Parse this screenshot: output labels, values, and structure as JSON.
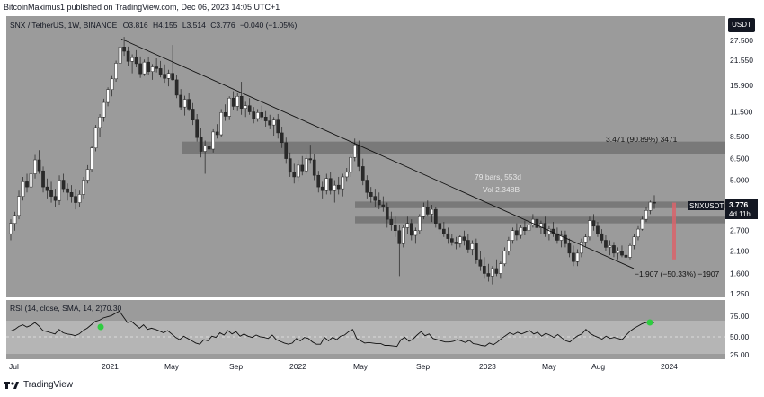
{
  "header": {
    "published_by": "BitcoinMaximus1 published on TradingView.com, Dec 06, 2023 14:05 UTC+1"
  },
  "symbol_line": {
    "symbol": "SNX / TetherUS, 1W, BINANCE",
    "o_label": "O",
    "o_value": "3.816",
    "h_label": "H",
    "h_value": "4.155",
    "l_label": "L",
    "l_value": "3.514",
    "c_label": "C",
    "c_value": "3.776",
    "change": "−0.040 (−1.05%)"
  },
  "currency_badge": "USDT",
  "price_tag": {
    "symbol": "SNXUSDT",
    "price": "3.776",
    "countdown": "4d 11h",
    "color": "#131722"
  },
  "annotations": {
    "measure_top": "3.471 (90.89%) 3471",
    "bars_info": "79 bars, 553d",
    "vol_info": "Vol 2.348B",
    "measure_bottom": "−1.907 (−50.33%) −1907"
  },
  "rsi": {
    "label": "RSI (14, close, SMA, 14, 2)",
    "value": "70.30",
    "ticks": [
      "75.00",
      "50.00",
      "25.00"
    ]
  },
  "footer": {
    "brand": "TradingView"
  },
  "colors": {
    "pane_bg": "#9b9b9b",
    "candle": "#ffffff",
    "zone": "#6e6e6e",
    "trendline": "#111111",
    "rsi_line": "#111111",
    "rsi_band": "#b5b5b5",
    "signal": "#2ecc40",
    "measure_bar": "#d9646b"
  },
  "chart_data": {
    "type": "candlestick",
    "title": "SNX / TetherUS, 1W, BINANCE",
    "y_scale": "log",
    "y_ticks": [
      "27.500",
      "21.550",
      "15.900",
      "11.500",
      "8.500",
      "6.500",
      "5.000",
      "3.776",
      "2.700",
      "2.100",
      "1.600",
      "1.250"
    ],
    "x_ticks": [
      "Jul",
      "2021",
      "May",
      "Sep",
      "2022",
      "May",
      "Sep",
      "2023",
      "May",
      "Aug",
      "2024"
    ],
    "candles": [
      {
        "o": 2.6,
        "h": 3.1,
        "l": 2.4,
        "c": 2.95
      },
      {
        "o": 2.95,
        "h": 3.4,
        "l": 2.7,
        "c": 3.25
      },
      {
        "o": 3.25,
        "h": 4.4,
        "l": 3.1,
        "c": 4.1
      },
      {
        "o": 4.1,
        "h": 5.2,
        "l": 3.9,
        "c": 4.9
      },
      {
        "o": 4.9,
        "h": 5.4,
        "l": 4.3,
        "c": 4.6
      },
      {
        "o": 4.6,
        "h": 5.6,
        "l": 4.4,
        "c": 5.4
      },
      {
        "o": 5.4,
        "h": 6.8,
        "l": 5.1,
        "c": 6.4
      },
      {
        "o": 6.4,
        "h": 7.2,
        "l": 5.4,
        "c": 5.6
      },
      {
        "o": 5.6,
        "h": 5.9,
        "l": 4.3,
        "c": 4.6
      },
      {
        "o": 4.6,
        "h": 5.1,
        "l": 4.0,
        "c": 4.4
      },
      {
        "o": 4.4,
        "h": 4.9,
        "l": 3.8,
        "c": 4.1
      },
      {
        "o": 4.1,
        "h": 4.5,
        "l": 3.6,
        "c": 3.9
      },
      {
        "o": 3.9,
        "h": 5.3,
        "l": 3.7,
        "c": 5.0
      },
      {
        "o": 5.0,
        "h": 5.4,
        "l": 4.3,
        "c": 4.5
      },
      {
        "o": 4.5,
        "h": 4.8,
        "l": 3.9,
        "c": 4.3
      },
      {
        "o": 4.3,
        "h": 4.7,
        "l": 3.8,
        "c": 4.1
      },
      {
        "o": 4.1,
        "h": 4.5,
        "l": 3.5,
        "c": 3.8
      },
      {
        "o": 3.8,
        "h": 4.4,
        "l": 3.6,
        "c": 4.2
      },
      {
        "o": 4.2,
        "h": 5.2,
        "l": 4.0,
        "c": 5.0
      },
      {
        "o": 5.0,
        "h": 6.0,
        "l": 4.8,
        "c": 5.7
      },
      {
        "o": 5.7,
        "h": 7.6,
        "l": 5.5,
        "c": 7.4
      },
      {
        "o": 7.4,
        "h": 9.8,
        "l": 7.1,
        "c": 9.5
      },
      {
        "o": 9.5,
        "h": 11.2,
        "l": 8.5,
        "c": 10.8
      },
      {
        "o": 10.8,
        "h": 13.5,
        "l": 10.2,
        "c": 12.9
      },
      {
        "o": 12.9,
        "h": 15.5,
        "l": 12.3,
        "c": 15.1
      },
      {
        "o": 15.1,
        "h": 17.8,
        "l": 13.9,
        "c": 17.2
      },
      {
        "o": 17.2,
        "h": 21.5,
        "l": 16.6,
        "c": 20.8
      },
      {
        "o": 20.8,
        "h": 26.5,
        "l": 19.8,
        "c": 25.4
      },
      {
        "o": 25.4,
        "h": 28.7,
        "l": 22.8,
        "c": 24.1
      },
      {
        "o": 24.1,
        "h": 25.5,
        "l": 20.2,
        "c": 21.3
      },
      {
        "o": 21.3,
        "h": 23.2,
        "l": 18.4,
        "c": 22.3
      },
      {
        "o": 22.3,
        "h": 24.4,
        "l": 19.8,
        "c": 20.7
      },
      {
        "o": 20.7,
        "h": 22.6,
        "l": 17.4,
        "c": 18.3
      },
      {
        "o": 18.3,
        "h": 21.8,
        "l": 17.8,
        "c": 21.1
      },
      {
        "o": 21.1,
        "h": 22.4,
        "l": 18.0,
        "c": 18.8
      },
      {
        "o": 18.8,
        "h": 20.6,
        "l": 17.0,
        "c": 19.9
      },
      {
        "o": 19.9,
        "h": 22.1,
        "l": 18.6,
        "c": 19.5
      },
      {
        "o": 19.5,
        "h": 21.4,
        "l": 17.5,
        "c": 18.2
      },
      {
        "o": 18.2,
        "h": 20.5,
        "l": 16.4,
        "c": 17.3
      },
      {
        "o": 17.3,
        "h": 19.2,
        "l": 15.7,
        "c": 18.4
      },
      {
        "o": 18.4,
        "h": 26.0,
        "l": 16.8,
        "c": 17.0
      },
      {
        "o": 17.0,
        "h": 18.0,
        "l": 13.6,
        "c": 14.1
      },
      {
        "o": 14.1,
        "h": 15.2,
        "l": 11.8,
        "c": 12.2
      },
      {
        "o": 12.2,
        "h": 14.0,
        "l": 11.0,
        "c": 13.4
      },
      {
        "o": 13.4,
        "h": 14.5,
        "l": 11.6,
        "c": 11.9
      },
      {
        "o": 11.9,
        "h": 12.8,
        "l": 9.8,
        "c": 10.4
      },
      {
        "o": 10.4,
        "h": 11.2,
        "l": 8.0,
        "c": 8.4
      },
      {
        "o": 8.4,
        "h": 9.4,
        "l": 6.6,
        "c": 7.1
      },
      {
        "o": 7.1,
        "h": 8.1,
        "l": 5.4,
        "c": 7.6
      },
      {
        "o": 7.6,
        "h": 8.6,
        "l": 6.7,
        "c": 7.3
      },
      {
        "o": 7.3,
        "h": 9.3,
        "l": 7.0,
        "c": 9.0
      },
      {
        "o": 9.0,
        "h": 9.9,
        "l": 8.3,
        "c": 8.7
      },
      {
        "o": 8.7,
        "h": 11.9,
        "l": 8.5,
        "c": 11.4
      },
      {
        "o": 11.4,
        "h": 12.6,
        "l": 10.3,
        "c": 10.9
      },
      {
        "o": 10.9,
        "h": 13.9,
        "l": 10.4,
        "c": 13.6
      },
      {
        "o": 13.6,
        "h": 14.8,
        "l": 11.8,
        "c": 12.3
      },
      {
        "o": 12.3,
        "h": 14.5,
        "l": 11.6,
        "c": 13.9
      },
      {
        "o": 13.9,
        "h": 16.6,
        "l": 11.1,
        "c": 12.0
      },
      {
        "o": 12.0,
        "h": 13.0,
        "l": 10.8,
        "c": 12.4
      },
      {
        "o": 12.4,
        "h": 13.6,
        "l": 11.1,
        "c": 11.5
      },
      {
        "o": 11.5,
        "h": 12.2,
        "l": 10.0,
        "c": 10.6
      },
      {
        "o": 10.6,
        "h": 11.9,
        "l": 10.2,
        "c": 11.4
      },
      {
        "o": 11.4,
        "h": 12.4,
        "l": 10.4,
        "c": 10.8
      },
      {
        "o": 10.8,
        "h": 11.6,
        "l": 9.6,
        "c": 10.3
      },
      {
        "o": 10.3,
        "h": 11.1,
        "l": 9.3,
        "c": 9.8
      },
      {
        "o": 9.8,
        "h": 10.8,
        "l": 8.6,
        "c": 10.4
      },
      {
        "o": 10.4,
        "h": 11.2,
        "l": 8.3,
        "c": 8.9
      },
      {
        "o": 8.9,
        "h": 9.6,
        "l": 7.4,
        "c": 7.9
      },
      {
        "o": 7.9,
        "h": 8.4,
        "l": 6.1,
        "c": 6.5
      },
      {
        "o": 6.5,
        "h": 7.0,
        "l": 5.2,
        "c": 5.5
      },
      {
        "o": 5.5,
        "h": 6.1,
        "l": 4.8,
        "c": 5.2
      },
      {
        "o": 5.2,
        "h": 6.4,
        "l": 4.9,
        "c": 6.0
      },
      {
        "o": 6.0,
        "h": 6.7,
        "l": 5.3,
        "c": 5.6
      },
      {
        "o": 5.6,
        "h": 6.8,
        "l": 5.4,
        "c": 6.5
      },
      {
        "o": 6.5,
        "h": 7.7,
        "l": 6.1,
        "c": 6.4
      },
      {
        "o": 6.4,
        "h": 6.9,
        "l": 5.0,
        "c": 5.3
      },
      {
        "o": 5.3,
        "h": 5.6,
        "l": 4.3,
        "c": 4.6
      },
      {
        "o": 4.6,
        "h": 4.9,
        "l": 4.0,
        "c": 4.4
      },
      {
        "o": 4.4,
        "h": 5.4,
        "l": 4.2,
        "c": 5.1
      },
      {
        "o": 5.1,
        "h": 5.5,
        "l": 4.2,
        "c": 4.4
      },
      {
        "o": 4.4,
        "h": 5.0,
        "l": 3.8,
        "c": 4.7
      },
      {
        "o": 4.7,
        "h": 5.2,
        "l": 4.2,
        "c": 4.5
      },
      {
        "o": 4.5,
        "h": 5.4,
        "l": 4.1,
        "c": 5.2
      },
      {
        "o": 5.2,
        "h": 5.8,
        "l": 4.9,
        "c": 5.5
      },
      {
        "o": 5.5,
        "h": 6.8,
        "l": 5.2,
        "c": 6.6
      },
      {
        "o": 6.6,
        "h": 8.3,
        "l": 6.3,
        "c": 7.7
      },
      {
        "o": 7.7,
        "h": 8.1,
        "l": 5.6,
        "c": 5.9
      },
      {
        "o": 5.9,
        "h": 6.5,
        "l": 4.7,
        "c": 5.0
      },
      {
        "o": 5.0,
        "h": 5.3,
        "l": 4.0,
        "c": 4.3
      },
      {
        "o": 4.3,
        "h": 4.6,
        "l": 3.8,
        "c": 4.1
      },
      {
        "o": 4.1,
        "h": 4.5,
        "l": 3.6,
        "c": 3.9
      },
      {
        "o": 3.9,
        "h": 4.3,
        "l": 3.5,
        "c": 3.7
      },
      {
        "o": 3.7,
        "h": 4.1,
        "l": 3.4,
        "c": 3.6
      },
      {
        "o": 3.6,
        "h": 3.8,
        "l": 2.8,
        "c": 3.1
      },
      {
        "o": 3.1,
        "h": 3.4,
        "l": 2.7,
        "c": 2.9
      },
      {
        "o": 2.9,
        "h": 3.2,
        "l": 2.5,
        "c": 2.7
      },
      {
        "o": 2.7,
        "h": 2.9,
        "l": 1.55,
        "c": 2.3
      },
      {
        "o": 2.3,
        "h": 2.9,
        "l": 2.2,
        "c": 2.8
      },
      {
        "o": 2.8,
        "h": 3.2,
        "l": 2.6,
        "c": 2.95
      },
      {
        "o": 2.95,
        "h": 3.1,
        "l": 2.4,
        "c": 2.55
      },
      {
        "o": 2.55,
        "h": 2.8,
        "l": 2.3,
        "c": 2.7
      },
      {
        "o": 2.7,
        "h": 3.3,
        "l": 2.6,
        "c": 3.2
      },
      {
        "o": 3.2,
        "h": 3.8,
        "l": 3.1,
        "c": 3.6
      },
      {
        "o": 3.6,
        "h": 3.9,
        "l": 3.2,
        "c": 3.3
      },
      {
        "o": 3.3,
        "h": 3.7,
        "l": 3.0,
        "c": 3.5
      },
      {
        "o": 3.5,
        "h": 3.6,
        "l": 2.8,
        "c": 2.95
      },
      {
        "o": 2.95,
        "h": 3.2,
        "l": 2.6,
        "c": 2.75
      },
      {
        "o": 2.75,
        "h": 3.0,
        "l": 2.5,
        "c": 2.6
      },
      {
        "o": 2.6,
        "h": 2.8,
        "l": 2.3,
        "c": 2.45
      },
      {
        "o": 2.45,
        "h": 2.6,
        "l": 2.25,
        "c": 2.35
      },
      {
        "o": 2.35,
        "h": 2.5,
        "l": 2.15,
        "c": 2.3
      },
      {
        "o": 2.3,
        "h": 2.55,
        "l": 2.2,
        "c": 2.5
      },
      {
        "o": 2.5,
        "h": 2.7,
        "l": 2.25,
        "c": 2.4
      },
      {
        "o": 2.4,
        "h": 2.6,
        "l": 2.05,
        "c": 2.15
      },
      {
        "o": 2.15,
        "h": 2.4,
        "l": 2.0,
        "c": 2.3
      },
      {
        "o": 2.3,
        "h": 2.45,
        "l": 1.8,
        "c": 1.9
      },
      {
        "o": 1.9,
        "h": 2.1,
        "l": 1.65,
        "c": 1.75
      },
      {
        "o": 1.75,
        "h": 1.95,
        "l": 1.5,
        "c": 1.6
      },
      {
        "o": 1.6,
        "h": 1.8,
        "l": 1.45,
        "c": 1.55
      },
      {
        "o": 1.55,
        "h": 1.75,
        "l": 1.4,
        "c": 1.7
      },
      {
        "o": 1.7,
        "h": 1.9,
        "l": 1.55,
        "c": 1.6
      },
      {
        "o": 1.6,
        "h": 1.85,
        "l": 1.5,
        "c": 1.8
      },
      {
        "o": 1.8,
        "h": 2.2,
        "l": 1.75,
        "c": 2.1
      },
      {
        "o": 2.1,
        "h": 2.5,
        "l": 2.0,
        "c": 2.4
      },
      {
        "o": 2.4,
        "h": 2.8,
        "l": 2.3,
        "c": 2.7
      },
      {
        "o": 2.7,
        "h": 2.95,
        "l": 2.4,
        "c": 2.55
      },
      {
        "o": 2.55,
        "h": 2.9,
        "l": 2.45,
        "c": 2.8
      },
      {
        "o": 2.8,
        "h": 3.05,
        "l": 2.55,
        "c": 2.7
      },
      {
        "o": 2.7,
        "h": 3.0,
        "l": 2.6,
        "c": 2.9
      },
      {
        "o": 2.9,
        "h": 3.3,
        "l": 2.8,
        "c": 3.1
      },
      {
        "o": 3.1,
        "h": 3.4,
        "l": 2.7,
        "c": 2.8
      },
      {
        "o": 2.8,
        "h": 3.05,
        "l": 2.6,
        "c": 2.95
      },
      {
        "o": 2.95,
        "h": 3.2,
        "l": 2.5,
        "c": 2.6
      },
      {
        "o": 2.6,
        "h": 2.85,
        "l": 2.4,
        "c": 2.75
      },
      {
        "o": 2.75,
        "h": 3.0,
        "l": 2.5,
        "c": 2.6
      },
      {
        "o": 2.6,
        "h": 2.8,
        "l": 2.3,
        "c": 2.4
      },
      {
        "o": 2.4,
        "h": 2.7,
        "l": 2.2,
        "c": 2.55
      },
      {
        "o": 2.55,
        "h": 2.7,
        "l": 2.2,
        "c": 2.3
      },
      {
        "o": 2.3,
        "h": 2.45,
        "l": 1.95,
        "c": 2.05
      },
      {
        "o": 2.05,
        "h": 2.25,
        "l": 1.75,
        "c": 1.85
      },
      {
        "o": 1.85,
        "h": 2.15,
        "l": 1.75,
        "c": 2.05
      },
      {
        "o": 2.05,
        "h": 2.45,
        "l": 1.95,
        "c": 2.35
      },
      {
        "o": 2.35,
        "h": 2.6,
        "l": 2.2,
        "c": 2.5
      },
      {
        "o": 2.5,
        "h": 3.2,
        "l": 2.4,
        "c": 3.05
      },
      {
        "o": 3.05,
        "h": 3.3,
        "l": 2.7,
        "c": 2.85
      },
      {
        "o": 2.85,
        "h": 3.0,
        "l": 2.5,
        "c": 2.6
      },
      {
        "o": 2.6,
        "h": 2.75,
        "l": 2.3,
        "c": 2.4
      },
      {
        "o": 2.4,
        "h": 2.55,
        "l": 2.1,
        "c": 2.2
      },
      {
        "o": 2.2,
        "h": 2.4,
        "l": 2.0,
        "c": 2.25
      },
      {
        "o": 2.25,
        "h": 2.35,
        "l": 1.95,
        "c": 2.05
      },
      {
        "o": 2.05,
        "h": 2.2,
        "l": 1.9,
        "c": 2.1
      },
      {
        "o": 2.1,
        "h": 2.25,
        "l": 1.95,
        "c": 2.0
      },
      {
        "o": 2.0,
        "h": 2.15,
        "l": 1.85,
        "c": 1.95
      },
      {
        "o": 1.95,
        "h": 2.3,
        "l": 1.9,
        "c": 2.25
      },
      {
        "o": 2.25,
        "h": 2.6,
        "l": 2.15,
        "c": 2.5
      },
      {
        "o": 2.5,
        "h": 2.85,
        "l": 2.4,
        "c": 2.75
      },
      {
        "o": 2.75,
        "h": 3.2,
        "l": 2.7,
        "c": 3.1
      },
      {
        "o": 3.1,
        "h": 3.6,
        "l": 3.0,
        "c": 3.45
      },
      {
        "o": 3.45,
        "h": 3.9,
        "l": 3.3,
        "c": 3.82
      },
      {
        "o": 3.816,
        "h": 4.155,
        "l": 3.514,
        "c": 3.776
      }
    ],
    "rsi_values": [
      55,
      58,
      63,
      66,
      62,
      65,
      70,
      64,
      56,
      54,
      52,
      50,
      58,
      52,
      50,
      49,
      47,
      50,
      56,
      60,
      66,
      72,
      74,
      78,
      80,
      82,
      86,
      90,
      80,
      70,
      72,
      66,
      60,
      66,
      58,
      60,
      58,
      55,
      52,
      56,
      50,
      44,
      40,
      46,
      42,
      38,
      34,
      32,
      40,
      38,
      46,
      44,
      52,
      48,
      56,
      50,
      54,
      46,
      50,
      46,
      44,
      48,
      45,
      44,
      42,
      48,
      40,
      37,
      34,
      32,
      34,
      42,
      38,
      44,
      42,
      36,
      32,
      32,
      44,
      38,
      44,
      40,
      46,
      48,
      54,
      58,
      42,
      38,
      34,
      35,
      34,
      33,
      33,
      30,
      30,
      29,
      28,
      40,
      44,
      37,
      41,
      48,
      54,
      47,
      50,
      42,
      40,
      38,
      36,
      36,
      37,
      40,
      38,
      35,
      39,
      33,
      32,
      30,
      29,
      34,
      31,
      36,
      42,
      47,
      52,
      49,
      53,
      50,
      53,
      56,
      50,
      53,
      46,
      51,
      48,
      44,
      49,
      43,
      38,
      36,
      42,
      47,
      50,
      58,
      51,
      47,
      44,
      41,
      46,
      42,
      44,
      42,
      40,
      48,
      55,
      60,
      64,
      68,
      70,
      71,
      70
    ]
  }
}
